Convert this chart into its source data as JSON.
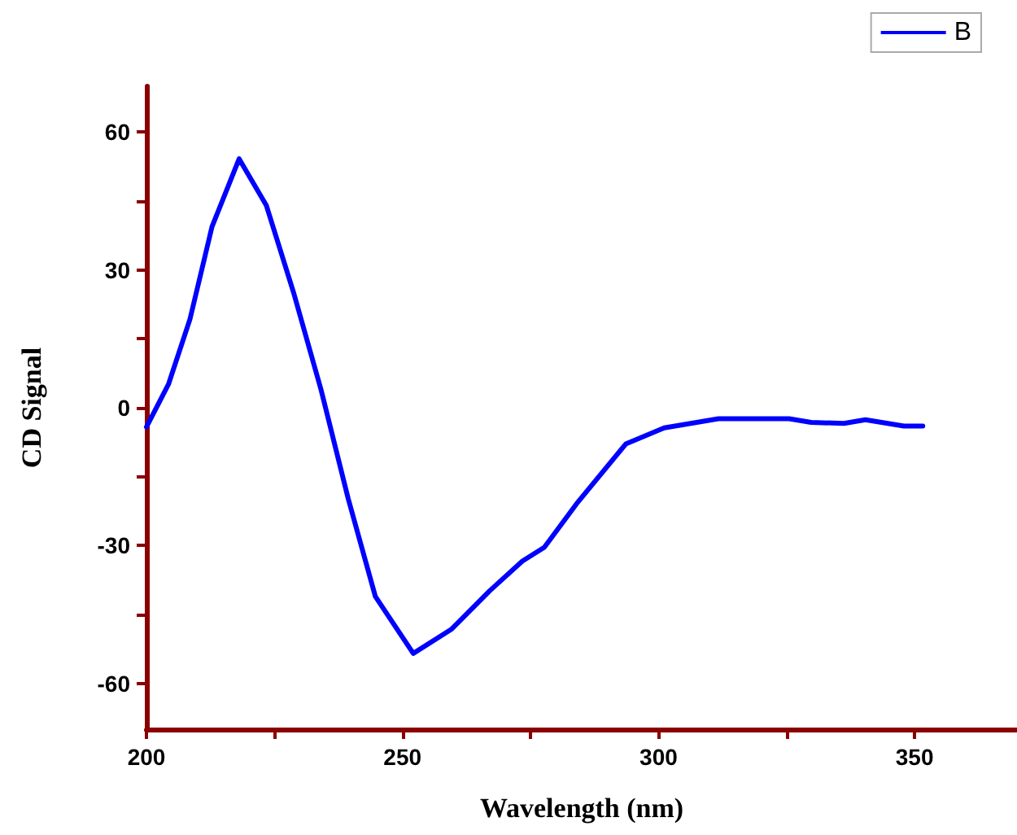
{
  "chart_data": {
    "type": "line",
    "xlabel": "Wavelength (nm)",
    "ylabel": "CD Signal",
    "xlim": [
      200,
      370
    ],
    "xticks": [
      200,
      {
        "value": 225,
        "label": null
      },
      250,
      {
        "value": 275,
        "label": null
      },
      300,
      {
        "value": 325,
        "label": null
      },
      350
    ],
    "ylim": [
      -70,
      70
    ],
    "yticks": [
      -60,
      {
        "value": -45,
        "label": null
      },
      -30,
      {
        "value": -15,
        "label": null
      },
      0,
      {
        "value": 15,
        "label": null
      },
      30,
      {
        "value": 45,
        "label": null
      },
      60
    ],
    "grid": false,
    "legend": "top right",
    "marker": "none",
    "line_style": "solid",
    "series": [
      {
        "name": "B",
        "color": "#0000ff",
        "x": [
          200,
          204.3,
          208.5,
          212.8,
          218.1,
          223.4,
          228.7,
          234.1,
          239.4,
          244.7,
          252.1,
          259.6,
          267,
          273.4,
          277.7,
          284,
          293.6,
          301.1,
          311.7,
          325.5,
          329.8,
          336.2,
          340.4,
          347.9,
          351.6
        ],
        "values": [
          -4.2,
          5.1,
          19.3,
          39.4,
          54.2,
          44.1,
          25.2,
          3.9,
          -19.8,
          -41.1,
          -53.5,
          -48.2,
          -39.9,
          -33.4,
          -30.4,
          -20.9,
          -7.9,
          -4.4,
          -2.4,
          -2.4,
          -3.2,
          -3.4,
          -2.6,
          -4.0,
          -4.0
        ]
      }
    ]
  }
}
